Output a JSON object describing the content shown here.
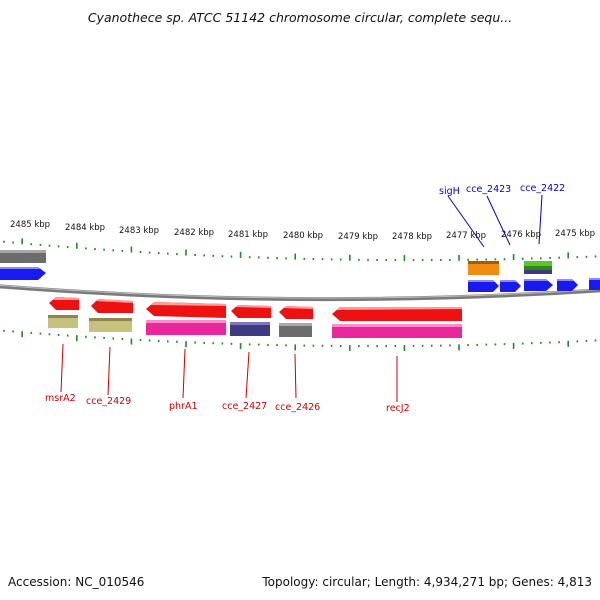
{
  "header": {
    "title": "Cyanothece sp. ATCC 51142 chromosome circular, complete sequ..."
  },
  "footer": {
    "accession": "Accession: NC_010546",
    "topology": "Topology: circular; Length: 4,934,271 bp; Genes: 4,813"
  },
  "colors": {
    "red_gene": "#ee1111",
    "pink_gene": "#e8289a",
    "khaki_gene": "#c6c27e",
    "navy_gene": "#3e3a82",
    "gray_gene": "#6c6c6c",
    "blue_gene": "#1a1aee",
    "orange_gene": "#f08c10",
    "green_gene": "#5cc42c",
    "tick_green": "#1f8a1f",
    "backbone": "#7a7a7a",
    "label_red": "#cc0000",
    "label_blue": "#0000cc"
  },
  "scale": {
    "tick_labels": [
      "2485 kbp",
      "2484 kbp",
      "2483 kbp",
      "2482 kbp",
      "2481 kbp",
      "2480 kbp",
      "2479 kbp",
      "2478 kbp",
      "2477 kbp",
      "2476 kbp",
      "2475 kbp"
    ]
  },
  "reverse_gene_labels": [
    "msrA2",
    "cce_2429",
    "phrA1",
    "cce_2427",
    "cce_2426",
    "recJ2"
  ],
  "forward_gene_labels": [
    "sigH",
    "cce_2423",
    "cce_2422"
  ]
}
